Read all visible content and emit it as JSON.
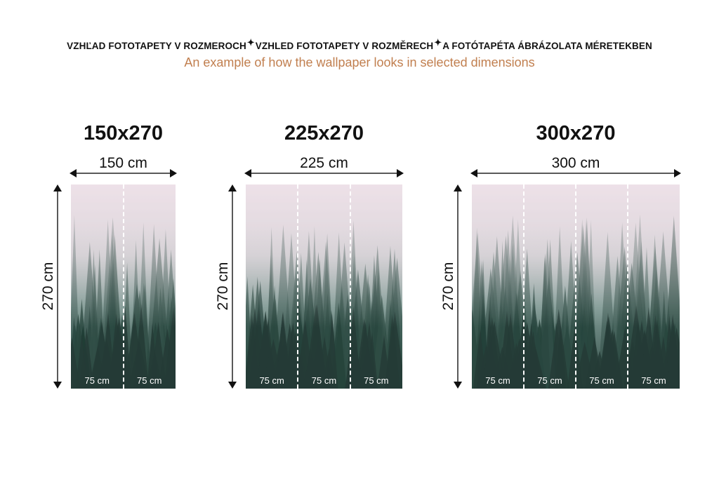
{
  "header": {
    "titles": [
      "VZHĽAD FOTOTAPETY V ROZMEROCH",
      "VZHLED FOTOTAPETY V ROZMĚRECH",
      "A FOTÓTAPÉTA ÁBRÁZOLATA MÉRETEKBEN"
    ],
    "separator_icon": "sparkle-icon",
    "subtitle": "An example of how the wallpaper looks in selected dimensions",
    "subtitle_color": "#c17f4f"
  },
  "variants": [
    {
      "title": "150x270",
      "width_label": "150 cm",
      "height_label": "270 cm",
      "strips": [
        "75 cm",
        "75 cm"
      ]
    },
    {
      "title": "225x270",
      "width_label": "225 cm",
      "height_label": "270 cm",
      "strips": [
        "75 cm",
        "75 cm",
        "75 cm"
      ]
    },
    {
      "title": "300x270",
      "width_label": "300 cm",
      "height_label": "270 cm",
      "strips": [
        "75 cm",
        "75 cm",
        "75 cm",
        "75 cm"
      ]
    }
  ]
}
